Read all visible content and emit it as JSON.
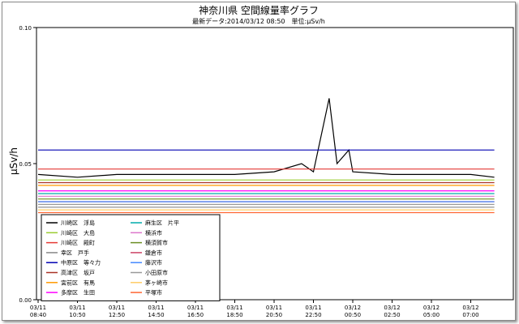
{
  "chart_data": {
    "type": "line",
    "title": "神奈川県 空間線量率グラフ",
    "subtitle": "最新データ:2014/03/12 08:50　単位:μSv/h",
    "ylabel": "μSv/h",
    "ylim": [
      0,
      0.1
    ],
    "yticks": [
      "0.00",
      "0.05",
      "0.10"
    ],
    "grid": false,
    "legend_position": "bottom-left",
    "xticks": [
      {
        "date": "03/11",
        "time": "08:40"
      },
      {
        "date": "03/11",
        "time": "10:50"
      },
      {
        "date": "03/11",
        "time": "12:50"
      },
      {
        "date": "03/11",
        "time": "14:50"
      },
      {
        "date": "03/11",
        "time": "16:50"
      },
      {
        "date": "03/11",
        "time": "18:50"
      },
      {
        "date": "03/11",
        "time": "20:50"
      },
      {
        "date": "03/11",
        "time": "22:50"
      },
      {
        "date": "03/12",
        "time": "00:50"
      },
      {
        "date": "03/12",
        "time": "02:50"
      },
      {
        "date": "03/12",
        "time": "05:00"
      },
      {
        "date": "03/12",
        "time": "07:00"
      }
    ],
    "series": [
      {
        "name": "川崎区　浮島",
        "color": "#000000",
        "points": [
          [
            0,
            0.046
          ],
          [
            1,
            0.045
          ],
          [
            2,
            0.046
          ],
          [
            3,
            0.046
          ],
          [
            4,
            0.046
          ],
          [
            5,
            0.046
          ],
          [
            6,
            0.047
          ],
          [
            6.7,
            0.05
          ],
          [
            7,
            0.047
          ],
          [
            7.4,
            0.074
          ],
          [
            7.6,
            0.05
          ],
          [
            7.9,
            0.055
          ],
          [
            8,
            0.047
          ],
          [
            9,
            0.046
          ],
          [
            10,
            0.046
          ],
          [
            11,
            0.046
          ],
          [
            11.6,
            0.045
          ]
        ]
      },
      {
        "name": "川崎区　大島",
        "color": "#9acd32",
        "points": [
          [
            0,
            0.044
          ],
          [
            11.6,
            0.044
          ]
        ]
      },
      {
        "name": "川崎区　殿町",
        "color": "#e53935",
        "points": [
          [
            0,
            0.048
          ],
          [
            11.6,
            0.048
          ]
        ]
      },
      {
        "name": "幸区　戸手",
        "color": "#888888",
        "points": [
          [
            0,
            0.034
          ],
          [
            11.6,
            0.034
          ]
        ]
      },
      {
        "name": "中原区　等々力",
        "color": "#0000b3",
        "points": [
          [
            0,
            0.055
          ],
          [
            11.6,
            0.055
          ]
        ]
      },
      {
        "name": "高津区　坂戸",
        "color": "#a93226",
        "points": [
          [
            0,
            0.043
          ],
          [
            11.6,
            0.043
          ]
        ]
      },
      {
        "name": "宮前区　有馬",
        "color": "#ff9900",
        "points": [
          [
            0,
            0.042
          ],
          [
            11.6,
            0.042
          ]
        ]
      },
      {
        "name": "多摩区　生田",
        "color": "#ff00ff",
        "points": [
          [
            0,
            0.04
          ],
          [
            11.6,
            0.04
          ]
        ]
      },
      {
        "name": "麻生区　片平",
        "color": "#00aaaa",
        "points": [
          [
            0,
            0.039
          ],
          [
            11.6,
            0.039
          ]
        ]
      },
      {
        "name": "横浜市",
        "color": "#dd77cc",
        "points": [
          [
            0,
            0.038
          ],
          [
            11.6,
            0.038
          ]
        ]
      },
      {
        "name": "横須賀市",
        "color": "#6b8e23",
        "points": [
          [
            0,
            0.037
          ],
          [
            11.6,
            0.037
          ]
        ]
      },
      {
        "name": "鎌倉市",
        "color": "#cc4466",
        "points": [
          [
            0,
            0.036
          ],
          [
            11.6,
            0.036
          ]
        ]
      },
      {
        "name": "藤沢市",
        "color": "#4488ff",
        "points": [
          [
            0,
            0.036
          ],
          [
            11.6,
            0.036
          ]
        ]
      },
      {
        "name": "小田原市",
        "color": "#999999",
        "points": [
          [
            0,
            0.035
          ],
          [
            11.6,
            0.035
          ]
        ]
      },
      {
        "name": "茅ヶ崎市",
        "color": "#ffcc66",
        "points": [
          [
            0,
            0.033
          ],
          [
            11.6,
            0.033
          ]
        ]
      },
      {
        "name": "平塚市",
        "color": "#ff6633",
        "points": [
          [
            0,
            0.032
          ],
          [
            11.6,
            0.032
          ]
        ]
      }
    ]
  }
}
